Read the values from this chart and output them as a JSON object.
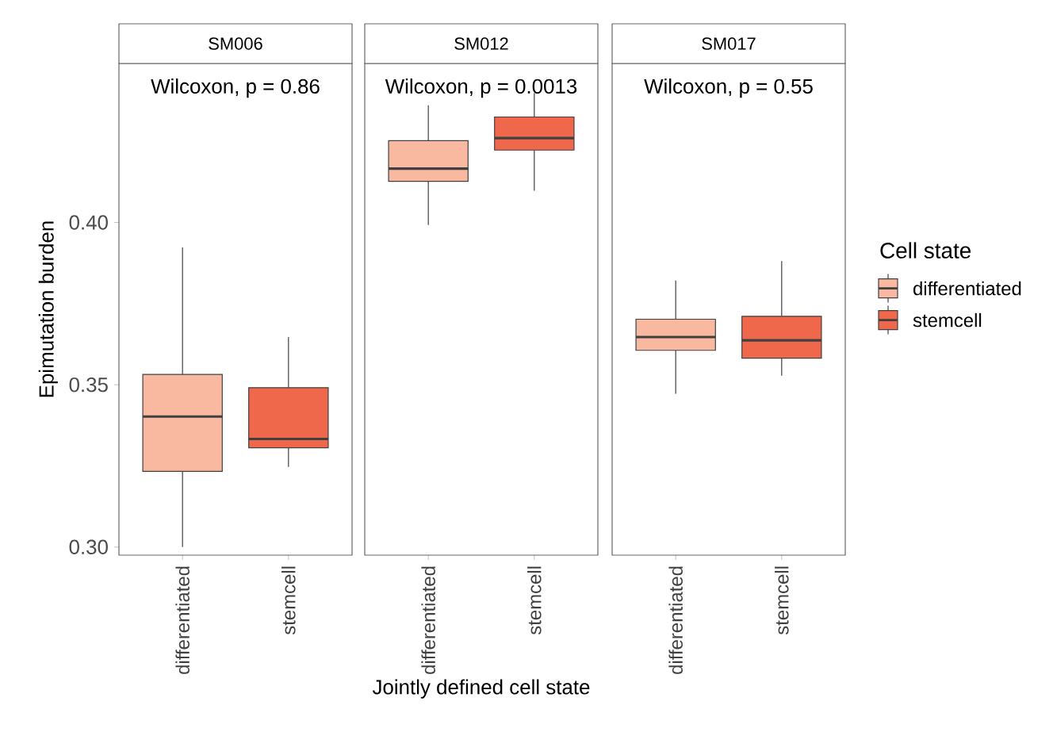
{
  "chart_data": [
    {
      "type": "box",
      "title": "SM006",
      "ylabel": "Epimutation burden",
      "categories": [
        "differentiated",
        "stemcell"
      ],
      "annotations": [
        "Wilcoxon, p = 0.86"
      ],
      "ylim": [
        0.2975,
        0.449
      ],
      "yticks": [
        {
          "value": 0.3,
          "label": "0.30"
        },
        {
          "value": 0.35,
          "label": "0.35"
        },
        {
          "value": 0.4,
          "label": "0.40"
        }
      ],
      "colors": [
        "#f9b9a0",
        "#f0684c"
      ],
      "boxes": [
        {
          "low": 0.3,
          "q1": 0.3233,
          "median": 0.3402,
          "q3": 0.3532,
          "high": 0.3923
        },
        {
          "low": 0.3247,
          "q1": 0.3306,
          "median": 0.3333,
          "q3": 0.3491,
          "high": 0.3647
        }
      ]
    },
    {
      "type": "box",
      "title": "SM012",
      "xlabel": "Jointly defined cell state",
      "categories": [
        "differentiated",
        "stemcell"
      ],
      "annotations": [
        "Wilcoxon, p = 0.0013"
      ],
      "ylim": [
        0.2975,
        0.449
      ],
      "tick_labels": "x",
      "colors": [
        "#f9b9a0",
        "#f0684c"
      ],
      "boxes": [
        {
          "low": 0.3992,
          "q1": 0.4127,
          "median": 0.4166,
          "q3": 0.4252,
          "high": 0.4361
        },
        {
          "low": 0.4098,
          "q1": 0.4223,
          "median": 0.426,
          "q3": 0.4325,
          "high": 0.4399
        }
      ]
    },
    {
      "type": "box",
      "title": "SM017",
      "categories": [
        "differentiated",
        "stemcell"
      ],
      "annotations": [
        "Wilcoxon, p = 0.55"
      ],
      "ylim": [
        0.2975,
        0.449
      ],
      "tick_labels": "x",
      "legend": "right",
      "legend_title": "Cell state",
      "series": [
        {
          "name": "differentiated",
          "color": "#f9b9a0",
          "boxes": [
            {
              "low": 0.3472,
              "q1": 0.3606,
              "median": 0.3647,
              "q3": 0.3702,
              "high": 0.3821
            },
            null
          ]
        },
        {
          "name": "stemcell",
          "color": "#f0684c",
          "boxes": [
            null,
            {
              "low": 0.3528,
              "q1": 0.3582,
              "median": 0.3637,
              "q3": 0.3711,
              "high": 0.3881
            }
          ]
        }
      ]
    }
  ]
}
